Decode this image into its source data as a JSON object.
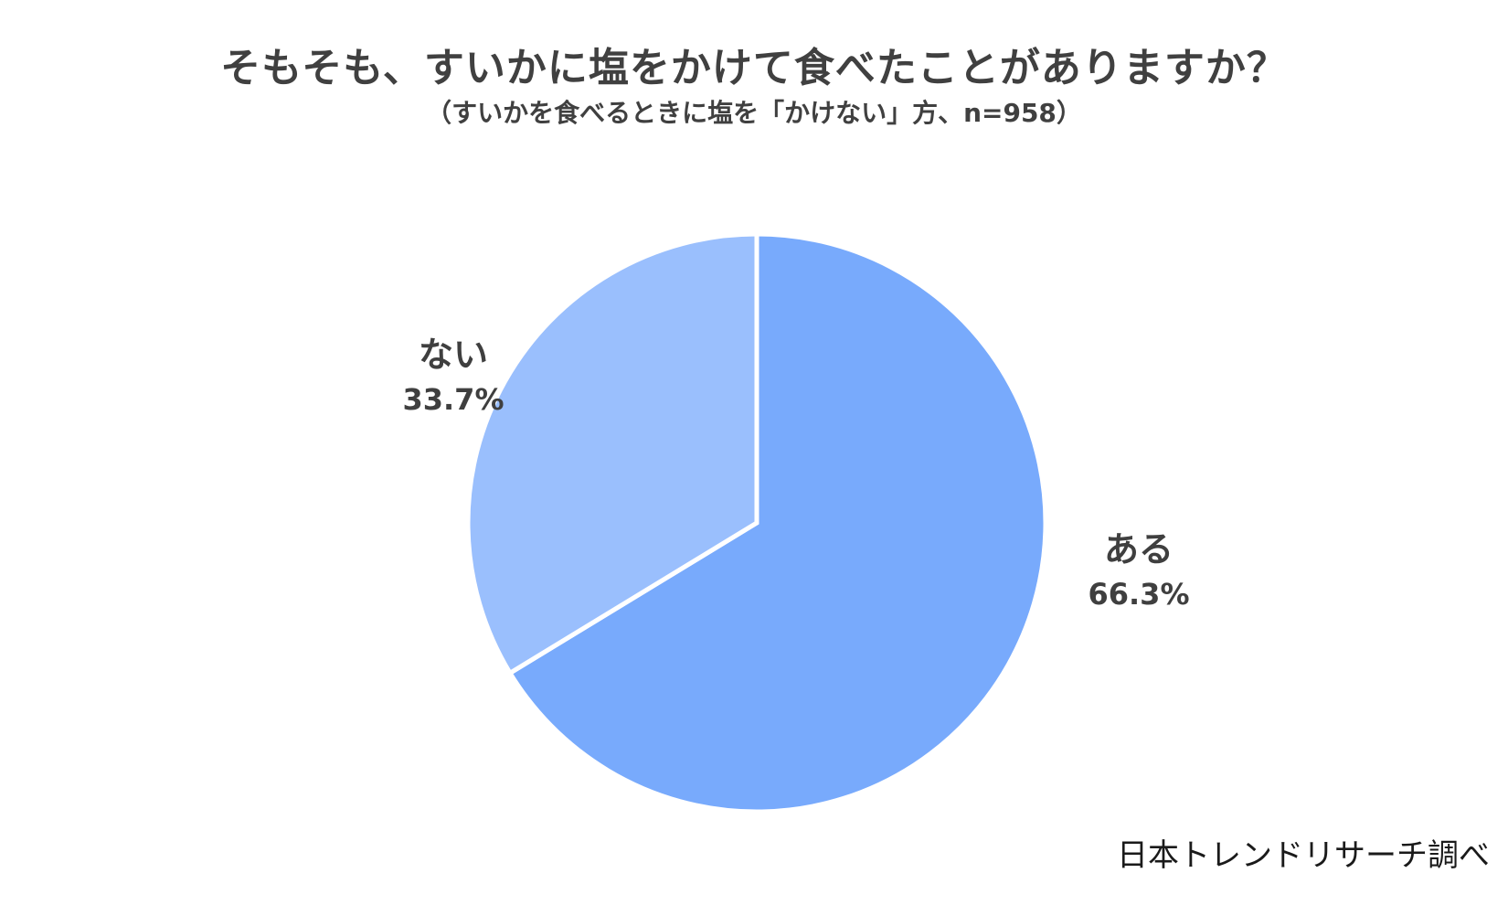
{
  "title": "そもそも、すいかに塩をかけて食べたことがありますか？",
  "subtitle": "（すいかを食べるときに塩を「かけない」方、n=958）",
  "source": "日本トレンドリサーチ調べ",
  "chart_data": {
    "type": "pie",
    "categories": [
      "ある",
      "ない"
    ],
    "values": [
      66.3,
      33.7
    ],
    "value_labels": [
      "66.3%",
      "33.7%"
    ],
    "colors": [
      "#78aafc",
      "#9abffd"
    ],
    "start": "12 o'clock",
    "direction": "clockwise",
    "legend": "none"
  }
}
